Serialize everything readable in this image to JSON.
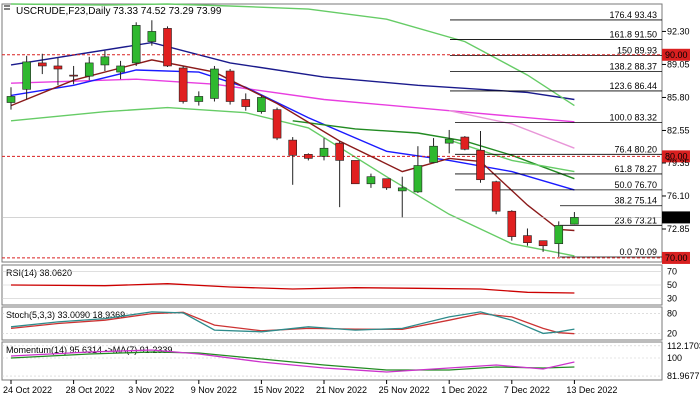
{
  "header": {
    "symbol": "USCRUDE,F23,Daily",
    "ohlc": "73.33 74.52 73.29 73.99"
  },
  "chart_data": {
    "type": "candlestick",
    "x_labels": [
      "24 Oct 2022",
      "28 Oct 2022",
      "3 Nov 2022",
      "9 Nov 2022",
      "15 Nov 2022",
      "21 Nov 2022",
      "25 Nov 2022",
      "1 Dec 2022",
      "7 Dec 2022",
      "13 Dec 2022"
    ],
    "y_ticks": [
      92.3,
      89.05,
      85.8,
      82.55,
      79.35,
      76.1,
      72.85
    ],
    "ylim": [
      69.6,
      95.0
    ],
    "last_price": 73.99,
    "candles": [
      {
        "o": 85.3,
        "h": 86.8,
        "l": 84.6,
        "c": 85.9
      },
      {
        "o": 86.6,
        "h": 89.9,
        "l": 85.6,
        "c": 89.3
      },
      {
        "o": 89.2,
        "h": 90.1,
        "l": 88.1,
        "c": 88.9
      },
      {
        "o": 88.9,
        "h": 89.7,
        "l": 87.0,
        "c": 88.6
      },
      {
        "o": 88.0,
        "h": 88.9,
        "l": 87.1,
        "c": 87.9
      },
      {
        "o": 87.9,
        "h": 89.8,
        "l": 87.5,
        "c": 89.2
      },
      {
        "o": 89.0,
        "h": 90.4,
        "l": 88.4,
        "c": 89.8
      },
      {
        "o": 88.3,
        "h": 89.4,
        "l": 87.6,
        "c": 88.9
      },
      {
        "o": 89.2,
        "h": 93.2,
        "l": 88.9,
        "c": 92.9
      },
      {
        "o": 91.3,
        "h": 93.4,
        "l": 90.9,
        "c": 92.3
      },
      {
        "o": 92.6,
        "h": 92.8,
        "l": 88.8,
        "c": 88.9
      },
      {
        "o": 88.7,
        "h": 88.9,
        "l": 85.2,
        "c": 85.4
      },
      {
        "o": 85.4,
        "h": 86.4,
        "l": 85.0,
        "c": 85.9
      },
      {
        "o": 85.7,
        "h": 88.9,
        "l": 85.4,
        "c": 88.6
      },
      {
        "o": 88.4,
        "h": 88.6,
        "l": 85.1,
        "c": 85.4
      },
      {
        "o": 85.6,
        "h": 86.2,
        "l": 84.5,
        "c": 84.9
      },
      {
        "o": 84.4,
        "h": 86.0,
        "l": 84.2,
        "c": 85.8
      },
      {
        "o": 84.6,
        "h": 84.8,
        "l": 81.6,
        "c": 81.8
      },
      {
        "o": 81.6,
        "h": 81.9,
        "l": 77.2,
        "c": 80.1
      },
      {
        "o": 80.2,
        "h": 80.3,
        "l": 79.6,
        "c": 79.8
      },
      {
        "o": 80.0,
        "h": 81.8,
        "l": 79.6,
        "c": 80.8
      },
      {
        "o": 81.3,
        "h": 81.5,
        "l": 75.0,
        "c": 79.6
      },
      {
        "o": 79.6,
        "h": 79.6,
        "l": 77.3,
        "c": 77.3
      },
      {
        "o": 77.3,
        "h": 78.3,
        "l": 76.9,
        "c": 78.0
      },
      {
        "o": 77.8,
        "h": 77.8,
        "l": 76.7,
        "c": 76.9
      },
      {
        "o": 76.6,
        "h": 78.0,
        "l": 74.0,
        "c": 76.9
      },
      {
        "o": 76.5,
        "h": 81.0,
        "l": 76.4,
        "c": 79.1
      },
      {
        "o": 79.4,
        "h": 81.8,
        "l": 79.3,
        "c": 81.0
      },
      {
        "o": 81.3,
        "h": 82.6,
        "l": 80.3,
        "c": 81.7
      },
      {
        "o": 81.9,
        "h": 82.0,
        "l": 80.6,
        "c": 80.7
      },
      {
        "o": 80.6,
        "h": 82.5,
        "l": 77.4,
        "c": 77.7
      },
      {
        "o": 77.5,
        "h": 77.6,
        "l": 74.3,
        "c": 74.6
      },
      {
        "o": 74.6,
        "h": 74.7,
        "l": 71.7,
        "c": 72.1
      },
      {
        "o": 72.2,
        "h": 72.9,
        "l": 71.2,
        "c": 71.5
      },
      {
        "o": 71.7,
        "h": 71.7,
        "l": 70.6,
        "c": 71.2
      },
      {
        "o": 71.4,
        "h": 73.6,
        "l": 70.1,
        "c": 73.2
      },
      {
        "o": 73.33,
        "h": 74.52,
        "l": 73.29,
        "c": 73.99
      }
    ],
    "series": [
      {
        "color": "#1a1a8c",
        "values": [
          [
            0,
            89.0
          ],
          [
            9,
            91.2
          ],
          [
            14,
            89.2
          ],
          [
            20,
            87.8
          ],
          [
            26,
            87.0
          ],
          [
            33,
            86.3
          ],
          [
            36,
            85.6
          ]
        ]
      },
      {
        "color": "#e83ee0",
        "values": [
          [
            0,
            87.2
          ],
          [
            8,
            87.6
          ],
          [
            13,
            87.1
          ],
          [
            20,
            85.6
          ],
          [
            28,
            84.5
          ],
          [
            36,
            83.4
          ]
        ]
      },
      {
        "color": "#e896d8",
        "values": [
          [
            28,
            84.5
          ],
          [
            32,
            83.2
          ],
          [
            36,
            80.8
          ]
        ]
      },
      {
        "color": "#1a1aff",
        "values": [
          [
            0,
            86.0
          ],
          [
            4,
            87.0
          ],
          [
            8,
            88.5
          ],
          [
            12,
            88.3
          ],
          [
            15,
            86.8
          ],
          [
            19,
            83.8
          ],
          [
            24,
            80.5
          ],
          [
            28,
            79.6
          ],
          [
            32,
            78.5
          ],
          [
            36,
            76.7
          ]
        ]
      },
      {
        "color": "#228b22",
        "values": [
          [
            18,
            83.5
          ],
          [
            22,
            82.7
          ],
          [
            26,
            82.3
          ],
          [
            29,
            81.5
          ],
          [
            32,
            80.1
          ],
          [
            36,
            77.8
          ]
        ]
      },
      {
        "color": "#8b1a1a",
        "values": [
          [
            0,
            85.0
          ],
          [
            4,
            87.5
          ],
          [
            9,
            89.5
          ],
          [
            13,
            88.3
          ],
          [
            17,
            85.2
          ],
          [
            21,
            81.5
          ],
          [
            25,
            78.5
          ],
          [
            28,
            79.8
          ],
          [
            30,
            79.5
          ],
          [
            33,
            75.2
          ],
          [
            35,
            72.8
          ],
          [
            36,
            72.7
          ]
        ]
      },
      {
        "color": "#66cc66",
        "values": [
          [
            0,
            95.0
          ],
          [
            6,
            94.9
          ],
          [
            10,
            95.0
          ],
          [
            14,
            94.8
          ],
          [
            19,
            94.5
          ],
          [
            24,
            93.5
          ],
          [
            29,
            91.3
          ],
          [
            33,
            88.0
          ],
          [
            36,
            85.0
          ]
        ]
      },
      {
        "color": "#66cc66",
        "values": [
          [
            0,
            83.5
          ],
          [
            6,
            84.4
          ],
          [
            10,
            84.8
          ],
          [
            15,
            84.3
          ],
          [
            19,
            82.8
          ],
          [
            24,
            78.0
          ],
          [
            28,
            74.3
          ],
          [
            32,
            71.4
          ],
          [
            36,
            70.2
          ]
        ]
      },
      {
        "color": "#66cc66",
        "values": [
          [
            28,
            81.6
          ],
          [
            32,
            79.6
          ],
          [
            36,
            78.5
          ]
        ]
      }
    ],
    "fibonacci": [
      {
        "label": "176.4 93.43",
        "value": 93.43
      },
      {
        "label": "161.8 91.50",
        "value": 91.5
      },
      {
        "label": "150 89.93",
        "value": 89.93
      },
      {
        "label": "138.2 88.37",
        "value": 88.37
      },
      {
        "label": "123.6 86.44",
        "value": 86.44
      },
      {
        "label": "100.0 83.32",
        "value": 83.32
      },
      {
        "label": "76.4 80.20",
        "value": 80.2
      },
      {
        "label": "61.8 78.27",
        "value": 78.27
      },
      {
        "label": "50.0 76.70",
        "value": 76.7
      },
      {
        "label": "38.2 75.14",
        "value": 75.14
      },
      {
        "label": "23.6 73.21",
        "value": 73.21
      },
      {
        "label": "0.0 70.09",
        "value": 70.09
      }
    ],
    "horizontal_levels": [
      {
        "label": "90.00",
        "value": 90.0,
        "color": "#d92020"
      },
      {
        "label": "80.00",
        "value": 80.0,
        "color": "#d92020"
      },
      {
        "label": "70.00",
        "value": 70.0,
        "color": "#d92020"
      }
    ],
    "rsi": {
      "title": "RSI(14) 38.0620",
      "ticks": [
        70,
        50,
        30
      ],
      "ylim": [
        20,
        80
      ],
      "values": [
        [
          0,
          50
        ],
        [
          6,
          49
        ],
        [
          10,
          52
        ],
        [
          14,
          47
        ],
        [
          18,
          44
        ],
        [
          22,
          46
        ],
        [
          26,
          45
        ],
        [
          30,
          44
        ],
        [
          33,
          39
        ],
        [
          36,
          38
        ]
      ],
      "color": "#cc0000"
    },
    "stochastic": {
      "title": "Stoch(5,3,3) 33.0090 18.9369",
      "ticks": [
        80,
        20
      ],
      "ylim": [
        0,
        100
      ],
      "k": [
        [
          0,
          40
        ],
        [
          3,
          55
        ],
        [
          6,
          65
        ],
        [
          9,
          85
        ],
        [
          11,
          82
        ],
        [
          13,
          30
        ],
        [
          16,
          25
        ],
        [
          19,
          40
        ],
        [
          22,
          30
        ],
        [
          25,
          35
        ],
        [
          28,
          70
        ],
        [
          30,
          85
        ],
        [
          32,
          60
        ],
        [
          34,
          20
        ],
        [
          35,
          25
        ],
        [
          36,
          33
        ]
      ],
      "d": [
        [
          0,
          35
        ],
        [
          3,
          50
        ],
        [
          6,
          60
        ],
        [
          9,
          80
        ],
        [
          11,
          84
        ],
        [
          13,
          45
        ],
        [
          16,
          28
        ],
        [
          19,
          35
        ],
        [
          22,
          33
        ],
        [
          25,
          32
        ],
        [
          28,
          60
        ],
        [
          30,
          80
        ],
        [
          32,
          70
        ],
        [
          34,
          35
        ],
        [
          35,
          22
        ],
        [
          36,
          19
        ]
      ],
      "k_color": "#2e8b8b",
      "d_color": "#cc3333"
    },
    "momentum": {
      "title": "Momentum(14) 95.6314 ->MA(7) 91.2339",
      "ticks": [
        "112.1703",
        "100",
        "81.9677"
      ],
      "ylim": [
        78,
        116
      ],
      "mom": [
        [
          0,
          102
        ],
        [
          5,
          106
        ],
        [
          9,
          108
        ],
        [
          12,
          104
        ],
        [
          16,
          96
        ],
        [
          20,
          90
        ],
        [
          24,
          86
        ],
        [
          28,
          90
        ],
        [
          31,
          93
        ],
        [
          34,
          89
        ],
        [
          36,
          96
        ]
      ],
      "ma": [
        [
          0,
          100
        ],
        [
          5,
          104
        ],
        [
          9,
          106
        ],
        [
          12,
          105
        ],
        [
          16,
          99
        ],
        [
          20,
          93
        ],
        [
          24,
          88
        ],
        [
          28,
          88
        ],
        [
          31,
          91
        ],
        [
          34,
          90
        ],
        [
          36,
          91
        ]
      ],
      "mom_color": "#cc33cc",
      "ma_color": "#228b22"
    }
  }
}
